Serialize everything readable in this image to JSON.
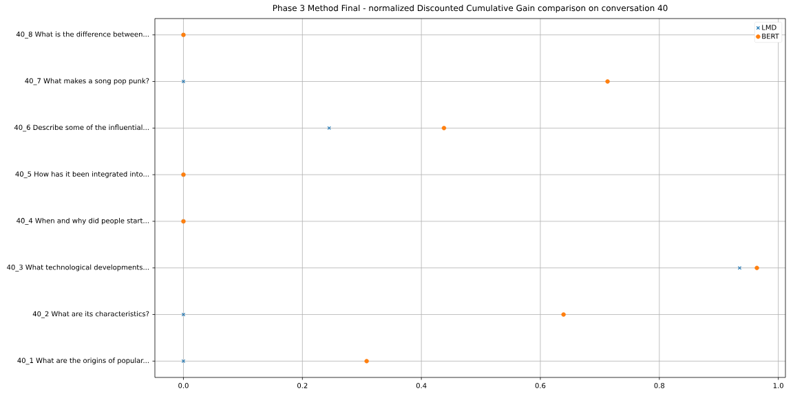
{
  "chart_data": {
    "type": "scatter",
    "orientation": "horizontal",
    "title": "Phase 3 Method Final - normalized Discounted Cumulative Gain comparison on conversation 40",
    "categories": [
      "40_8 What is the difference between...",
      "40_7 What makes a song pop punk?",
      "40_6 Describe some of the influential...",
      "40_5 How has it been integrated into...",
      "40_4 When and why did people start...",
      "40_3 What technological developments...",
      "40_2 What are its characteristics?",
      "40_1 What are the origins of popular..."
    ],
    "series": [
      {
        "name": "LMD",
        "color": "#1f77b4",
        "marker": "cross",
        "values": [
          0,
          0,
          0.245,
          0,
          0,
          0.935,
          0,
          0
        ]
      },
      {
        "name": "BERT",
        "color": "#ff7f0e",
        "marker": "circle",
        "values": [
          0,
          0.713,
          0.438,
          0,
          0,
          0.964,
          0.639,
          0.308
        ]
      }
    ],
    "xlim": [
      -0.048,
      1.012
    ],
    "xticks": [
      {
        "value": 0,
        "label": "0.0"
      },
      0.2,
      0.4,
      0.6,
      0.8,
      {
        "value": 1,
        "label": "1.0"
      }
    ],
    "grid": true,
    "legend": "top right"
  }
}
